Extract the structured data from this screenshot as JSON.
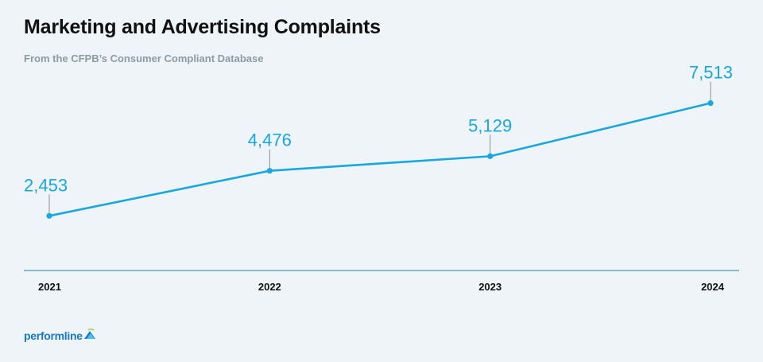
{
  "title": "Marketing and Advertising Complaints",
  "subtitle": "From the CFPB’s Consumer Compliant Database",
  "brand": {
    "name": "performline",
    "mark_icon": "performline-logo-mark-icon",
    "color": "#1b79c9"
  },
  "colors": {
    "line": "#1aa7df",
    "axis": "#4a9bb5",
    "text": "#111111"
  },
  "chart_data": {
    "type": "line",
    "title": "Marketing and Advertising Complaints",
    "subtitle": "From the CFPB’s Consumer Compliant Database",
    "xlabel": "",
    "ylabel": "",
    "categories": [
      "2021",
      "2022",
      "2023",
      "2024"
    ],
    "values": [
      2453,
      4476,
      5129,
      7513
    ],
    "data_labels": [
      "2,453",
      "4,476",
      "5,129",
      "7,513"
    ],
    "ylim": [
      0,
      9200
    ],
    "grid": false,
    "legend": "none"
  }
}
